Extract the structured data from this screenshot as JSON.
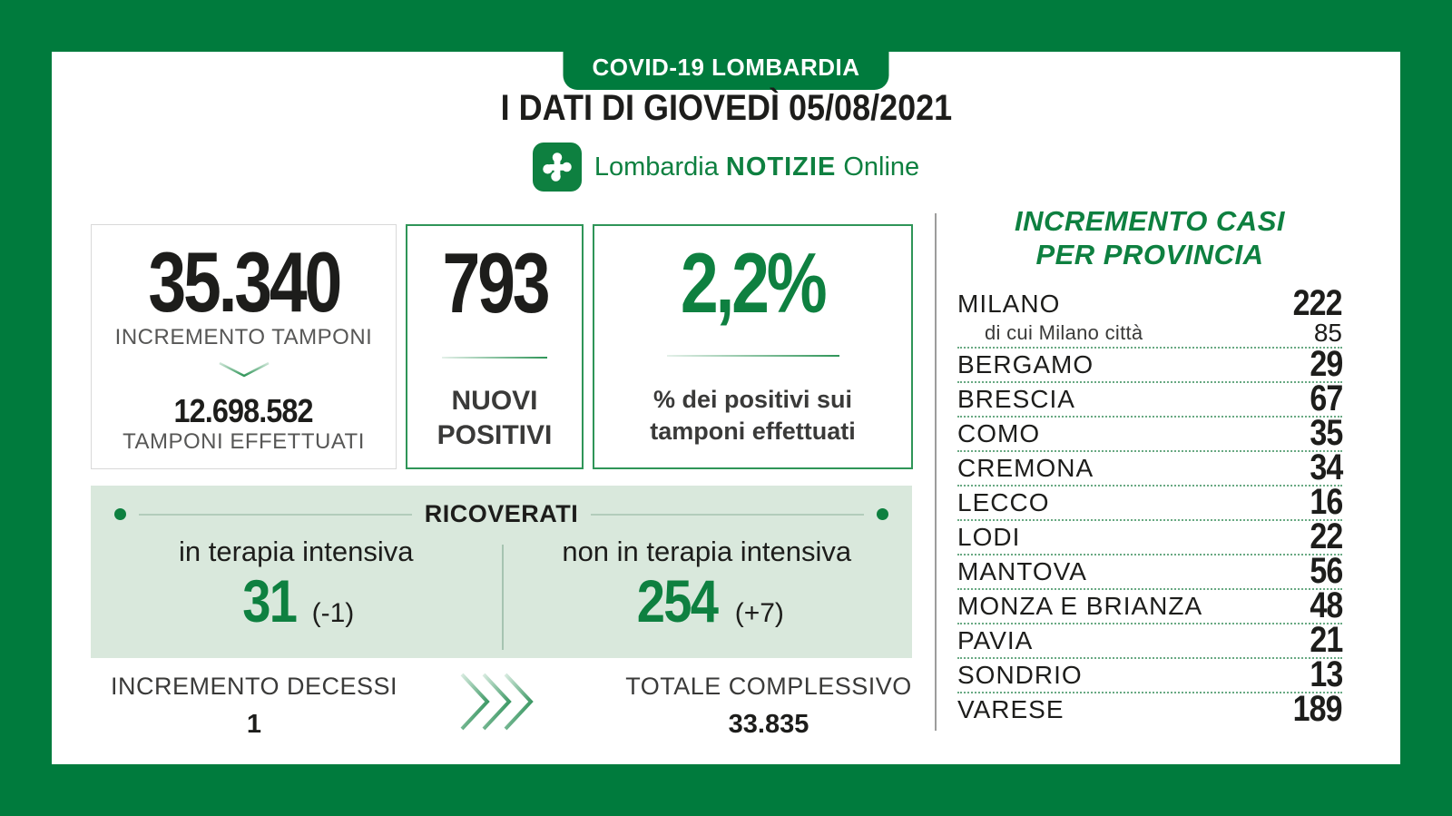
{
  "colors": {
    "frame_green": "#007B3D",
    "accent_green": "#0E8040",
    "pale_green_band": "#D9E8DC",
    "text_dark": "#1d1d1b",
    "text_gray": "#575756"
  },
  "header": {
    "badge": "COVID-19 LOMBARDIA",
    "title": "I DATI DI GIOVEDÌ 05/08/2021",
    "logo": {
      "part1": "Lombardia",
      "part2": "NOTIZIE",
      "part3": "Online"
    }
  },
  "icons": {
    "logo_mark": "rosa-camuna-icon",
    "card1_arrow": "chevron-down-icon",
    "bottom_arrows": "triple-chevron-right-icon"
  },
  "stats": {
    "tamponi": {
      "increment": "35.340",
      "increment_label": "INCREMENTO TAMPONI",
      "total": "12.698.582",
      "total_label": "TAMPONI EFFETTUATI"
    },
    "nuovi_positivi": {
      "value": "793",
      "label": "NUOVI POSITIVI"
    },
    "percent_positivi": {
      "value": "2,2%",
      "label": "% dei positivi sui tamponi effettuati"
    }
  },
  "ricoverati": {
    "title": "RICOVERATI",
    "terapia_intensiva": {
      "label": "in terapia intensiva",
      "value": "31",
      "delta": "(-1)"
    },
    "non_terapia_intensiva": {
      "label": "non in terapia intensiva",
      "value": "254",
      "delta": "(+7)"
    }
  },
  "bottom": {
    "decessi": {
      "label": "INCREMENTO DECESSI",
      "value": "1"
    },
    "totale": {
      "label": "TOTALE COMPLESSIVO",
      "value": "33.835"
    }
  },
  "provinces": {
    "title_line1": "INCREMENTO CASI",
    "title_line2": "PER PROVINCIA",
    "rows": [
      {
        "name": "MILANO",
        "value": "222",
        "sub": false,
        "sep": false
      },
      {
        "name": "di cui Milano città",
        "value": "85",
        "sub": true,
        "sep": true
      },
      {
        "name": "BERGAMO",
        "value": "29",
        "sub": false,
        "sep": true
      },
      {
        "name": "BRESCIA",
        "value": "67",
        "sub": false,
        "sep": true
      },
      {
        "name": "COMO",
        "value": "35",
        "sub": false,
        "sep": true
      },
      {
        "name": "CREMONA",
        "value": "34",
        "sub": false,
        "sep": true
      },
      {
        "name": "LECCO",
        "value": "16",
        "sub": false,
        "sep": true
      },
      {
        "name": "LODI",
        "value": "22",
        "sub": false,
        "sep": true
      },
      {
        "name": "MANTOVA",
        "value": "56",
        "sub": false,
        "sep": true
      },
      {
        "name": "MONZA E BRIANZA",
        "value": "48",
        "sub": false,
        "sep": true
      },
      {
        "name": "PAVIA",
        "value": "21",
        "sub": false,
        "sep": true
      },
      {
        "name": "SONDRIO",
        "value": "13",
        "sub": false,
        "sep": true
      },
      {
        "name": "VARESE",
        "value": "189",
        "sub": false,
        "sep": false
      }
    ]
  },
  "chart_data": {
    "type": "table",
    "title": "COVID-19 Lombardia — I dati di giovedì 05/08/2021",
    "headline_stats": {
      "incremento_tamponi": 35340,
      "tamponi_effettuati": 12698582,
      "nuovi_positivi": 793,
      "percentuale_positivi_su_tamponi": 2.2,
      "ricoverati_terapia_intensiva": 31,
      "ricoverati_terapia_intensiva_delta": -1,
      "ricoverati_non_terapia_intensiva": 254,
      "ricoverati_non_terapia_intensiva_delta": 7,
      "incremento_decessi": 1,
      "totale_complessivo": 33835
    },
    "series_label": "Incremento casi per provincia",
    "categories": [
      "MILANO",
      "di cui Milano città",
      "BERGAMO",
      "BRESCIA",
      "COMO",
      "CREMONA",
      "LECCO",
      "LODI",
      "MANTOVA",
      "MONZA E BRIANZA",
      "PAVIA",
      "SONDRIO",
      "VARESE"
    ],
    "values": [
      222,
      85,
      29,
      67,
      35,
      34,
      16,
      22,
      56,
      48,
      21,
      13,
      189
    ]
  }
}
